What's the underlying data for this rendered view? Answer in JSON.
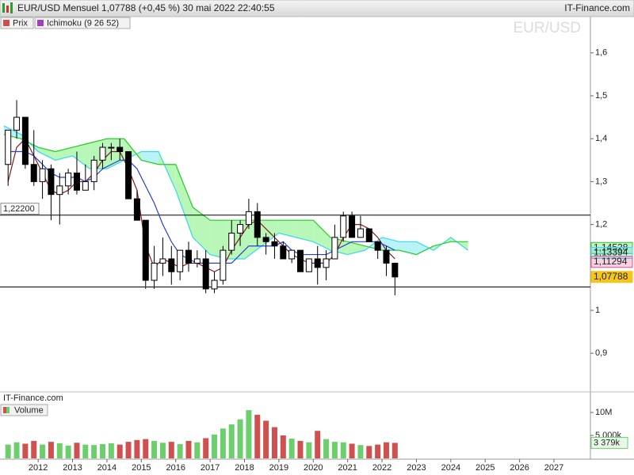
{
  "chart_data": {
    "type": "candlestick",
    "title": "EUR/USD Mensuel 1,07788 (+0,45 %) 30 mai 2022 22:40:55",
    "source": "IT-Finance.com",
    "footer": "IT-Finance.com",
    "watermark": "EUR/USD",
    "legend": [
      "Prix",
      "Ichimoku (9 26 52)"
    ],
    "xlim": [
      2010.89,
      2028.06
    ],
    "xticks": [
      2012,
      2013,
      2014,
      2015,
      2016,
      2017,
      2018,
      2019,
      2020,
      2021,
      2022,
      2023,
      2024,
      2025,
      2026,
      2027
    ],
    "ylim": [
      0.81,
      1.655
    ],
    "yticks": [
      {
        "value": 1.6,
        "label": "1,6"
      },
      {
        "value": 1.5,
        "label": "1,5"
      },
      {
        "value": 1.4,
        "label": "1,4"
      },
      {
        "value": 1.3,
        "label": "1,3"
      },
      {
        "value": 1.2,
        "label": "1,2"
      },
      1,
      {
        "value": 0.9,
        "label": "0,9"
      }
    ],
    "candles": {
      "up_color": "#ffffff",
      "down_color": "#000000",
      "x": [
        2011.125,
        2011.375,
        2011.625,
        2011.875,
        2012.125,
        2012.375,
        2012.625,
        2012.875,
        2013.125,
        2013.375,
        2013.625,
        2013.875,
        2014.125,
        2014.375,
        2014.625,
        2014.875,
        2015.125,
        2015.375,
        2015.625,
        2015.875,
        2016.125,
        2016.375,
        2016.625,
        2016.875,
        2017.125,
        2017.375,
        2017.625,
        2017.875,
        2018.125,
        2018.375,
        2018.625,
        2018.875,
        2019.125,
        2019.375,
        2019.625,
        2019.875,
        2020.125,
        2020.375,
        2020.625,
        2020.875,
        2021.125,
        2021.375,
        2021.625,
        2021.875,
        2022.125,
        2022.375
      ],
      "open": [
        1.34,
        1.42,
        1.45,
        1.34,
        1.3,
        1.33,
        1.27,
        1.29,
        1.32,
        1.28,
        1.3,
        1.35,
        1.38,
        1.38,
        1.37,
        1.26,
        1.21,
        1.07,
        1.11,
        1.12,
        1.09,
        1.14,
        1.11,
        1.12,
        1.05,
        1.07,
        1.14,
        1.18,
        1.2,
        1.23,
        1.17,
        1.16,
        1.15,
        1.12,
        1.14,
        1.09,
        1.12,
        1.1,
        1.12,
        1.17,
        1.22,
        1.17,
        1.19,
        1.16,
        1.14,
        1.11
      ],
      "high": [
        1.42,
        1.49,
        1.45,
        1.42,
        1.35,
        1.34,
        1.32,
        1.33,
        1.37,
        1.34,
        1.36,
        1.39,
        1.39,
        1.4,
        1.37,
        1.28,
        1.21,
        1.15,
        1.17,
        1.15,
        1.14,
        1.16,
        1.14,
        1.14,
        1.09,
        1.15,
        1.21,
        1.21,
        1.26,
        1.25,
        1.18,
        1.18,
        1.16,
        1.14,
        1.14,
        1.12,
        1.15,
        1.14,
        1.2,
        1.23,
        1.23,
        1.22,
        1.19,
        1.16,
        1.15,
        1.11
      ],
      "low": [
        1.29,
        1.4,
        1.33,
        1.29,
        1.26,
        1.21,
        1.2,
        1.27,
        1.27,
        1.28,
        1.28,
        1.33,
        1.35,
        1.35,
        1.26,
        1.21,
        1.05,
        1.05,
        1.08,
        1.06,
        1.07,
        1.09,
        1.1,
        1.04,
        1.04,
        1.06,
        1.13,
        1.15,
        1.19,
        1.15,
        1.13,
        1.12,
        1.12,
        1.11,
        1.09,
        1.09,
        1.06,
        1.07,
        1.12,
        1.16,
        1.17,
        1.17,
        1.16,
        1.12,
        1.08,
        1.035
      ],
      "close": [
        1.42,
        1.45,
        1.34,
        1.3,
        1.33,
        1.27,
        1.29,
        1.32,
        1.28,
        1.3,
        1.35,
        1.38,
        1.38,
        1.37,
        1.26,
        1.21,
        1.07,
        1.11,
        1.12,
        1.09,
        1.14,
        1.11,
        1.12,
        1.05,
        1.07,
        1.14,
        1.18,
        1.2,
        1.23,
        1.17,
        1.16,
        1.15,
        1.12,
        1.14,
        1.09,
        1.12,
        1.1,
        1.12,
        1.17,
        1.22,
        1.17,
        1.19,
        1.16,
        1.14,
        1.11,
        1.07788
      ]
    },
    "series": [
      {
        "color": "#8b1a1a",
        "values": [
          1.3,
          1.38,
          1.4,
          1.36,
          1.32,
          1.28,
          1.27,
          1.28,
          1.3,
          1.3,
          1.32,
          1.35,
          1.37,
          1.37,
          1.33,
          1.28,
          1.15,
          1.1,
          1.12,
          1.11,
          1.1,
          1.11,
          1.11,
          1.1,
          1.09,
          1.1,
          1.14,
          1.17,
          1.2,
          1.21,
          1.19,
          1.17,
          1.15,
          1.13,
          1.12,
          1.11,
          1.11,
          1.11,
          1.13,
          1.17,
          1.2,
          1.2,
          1.19,
          1.17,
          1.14,
          1.12
        ]
      },
      {
        "color": "#2a3fd6",
        "values": [
          1.37,
          1.37,
          1.37,
          1.36,
          1.34,
          1.32,
          1.31,
          1.31,
          1.31,
          1.3,
          1.31,
          1.33,
          1.34,
          1.35,
          1.35,
          1.33,
          1.29,
          1.25,
          1.2,
          1.16,
          1.13,
          1.12,
          1.11,
          1.11,
          1.11,
          1.11,
          1.11,
          1.13,
          1.15,
          1.15,
          1.15,
          1.15,
          1.16,
          1.14,
          1.13,
          1.13,
          1.13,
          1.13,
          1.14,
          1.15,
          1.16,
          1.16,
          1.16,
          1.16,
          1.15,
          1.14
        ]
      }
    ],
    "cloud": {
      "a_color": "#38d8f0",
      "b_color": "#22cc22",
      "fill_b_above": "#b8f7b8",
      "fill_a_above": "#b8f4f7",
      "x": [
        2011.0,
        2011.5,
        2012.0,
        2012.5,
        2013.0,
        2013.5,
        2014.0,
        2014.5,
        2015.0,
        2015.5,
        2016.0,
        2016.5,
        2017.0,
        2017.5,
        2018.0,
        2018.5,
        2019.0,
        2019.5,
        2020.0,
        2020.5,
        2021.0,
        2021.5,
        2022.0,
        2022.5,
        2023.0,
        2023.5,
        2024.0,
        2024.5
      ],
      "span_a": [
        1.43,
        1.41,
        1.37,
        1.35,
        1.36,
        1.33,
        1.33,
        1.35,
        1.37,
        1.37,
        1.28,
        1.17,
        1.13,
        1.12,
        1.12,
        1.15,
        1.18,
        1.17,
        1.16,
        1.14,
        1.13,
        1.14,
        1.17,
        1.16,
        1.16,
        1.14,
        1.17,
        1.14
      ],
      "span_b": [
        1.41,
        1.4,
        1.38,
        1.37,
        1.38,
        1.39,
        1.4,
        1.4,
        1.35,
        1.34,
        1.34,
        1.24,
        1.21,
        1.21,
        1.21,
        1.21,
        1.21,
        1.21,
        1.21,
        1.17,
        1.16,
        1.15,
        1.14,
        1.14,
        1.13,
        1.15,
        1.16,
        1.16
      ]
    },
    "levels": [
      {
        "value": 1.222,
        "label": "1,22200"
      },
      1.0545
    ],
    "price_labels": [
      {
        "value": 1.14528,
        "label": "1,14528",
        "color": "#22cc22"
      },
      {
        "value": 1.13394,
        "label": "1,13394",
        "color": "#38d8f0"
      },
      {
        "value": 1.11294,
        "label": "1,11294",
        "color": "#e0508a"
      },
      {
        "value": 1.07788,
        "label": "1,07788",
        "color": "#f5c518"
      }
    ],
    "volume": {
      "legend": "Volume",
      "up_color": "#6ccf6c",
      "down_color": "#d05050",
      "ylim": [
        0,
        11550000
      ],
      "yticks": [
        {
          "value": 10000000,
          "label": "10M"
        },
        {
          "value": 5000000,
          "label": "5 000k"
        }
      ],
      "values": [
        3000000,
        3500000,
        3200000,
        3800000,
        3000000,
        3600000,
        3300000,
        2800000,
        3400000,
        3000000,
        2900000,
        3100000,
        3300000,
        3000000,
        3600000,
        4000000,
        4200000,
        3800000,
        3400000,
        3600000,
        3100000,
        3800000,
        3500000,
        4400000,
        5200000,
        6500000,
        7400000,
        8500000,
        10500000,
        9500000,
        8200000,
        6800000,
        5000000,
        4300000,
        3800000,
        3500000,
        6000000,
        4200000,
        3600000,
        3500000,
        3200000,
        2900000,
        2700000,
        3000000,
        3500000,
        3379000
      ],
      "last_label": "3 379k"
    }
  }
}
